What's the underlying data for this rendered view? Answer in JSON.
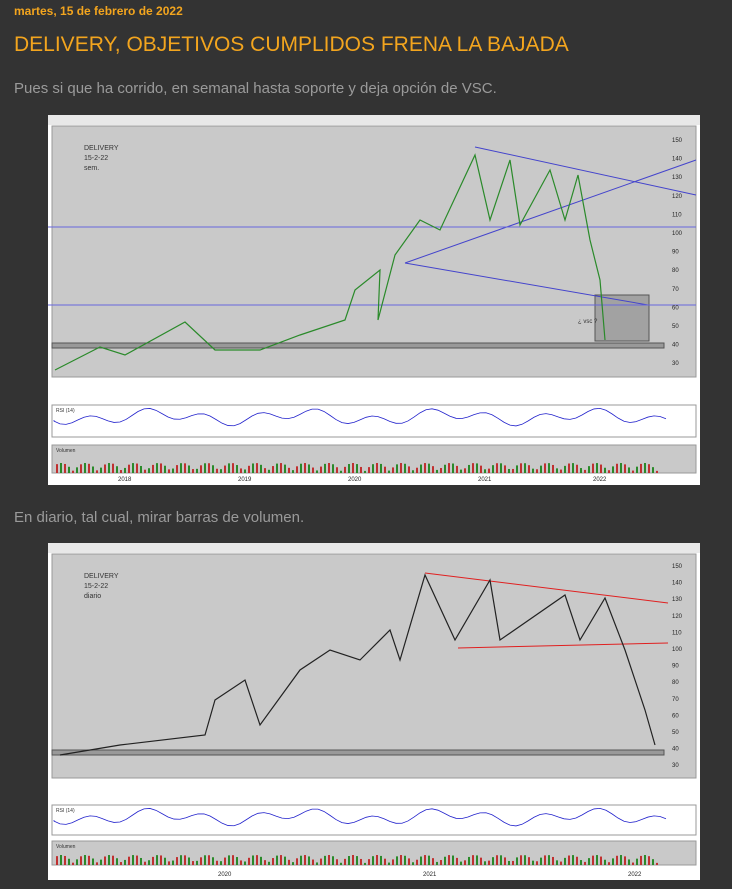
{
  "header": {
    "date": "martes, 15 de febrero de 2022",
    "title": "DELIVERY, OBJETIVOS CUMPLIDOS FRENA LA BAJADA"
  },
  "paragraphs": [
    "Pues si que ha corrido, en semanal hasta soporte y deja opción de VSC.",
    "En diario, tal cual, mirar barras de volumen."
  ],
  "images": [
    {
      "annotation": [
        "DELIVERY",
        "15-2-22",
        "sem."
      ],
      "note": "¿ vsc ?",
      "panels": [
        "RSI (14)",
        "Volumen"
      ],
      "price_labels": [
        "150",
        "140",
        "130",
        "120",
        "110",
        "100",
        "90",
        "80",
        "70",
        "60",
        "50",
        "40",
        "30"
      ],
      "time_labels": [
        "2018",
        "2019",
        "2020",
        "2021",
        "2022"
      ]
    },
    {
      "annotation": [
        "DELIVERY",
        "15-2-22",
        "diario"
      ],
      "panels": [
        "RSI (14)",
        "Volumen"
      ],
      "price_labels": [
        "150",
        "140",
        "130",
        "120",
        "110",
        "100",
        "90",
        "80",
        "70",
        "60",
        "50",
        "40",
        "30"
      ],
      "time_labels": [
        "2020",
        "2021",
        "2022"
      ]
    }
  ]
}
